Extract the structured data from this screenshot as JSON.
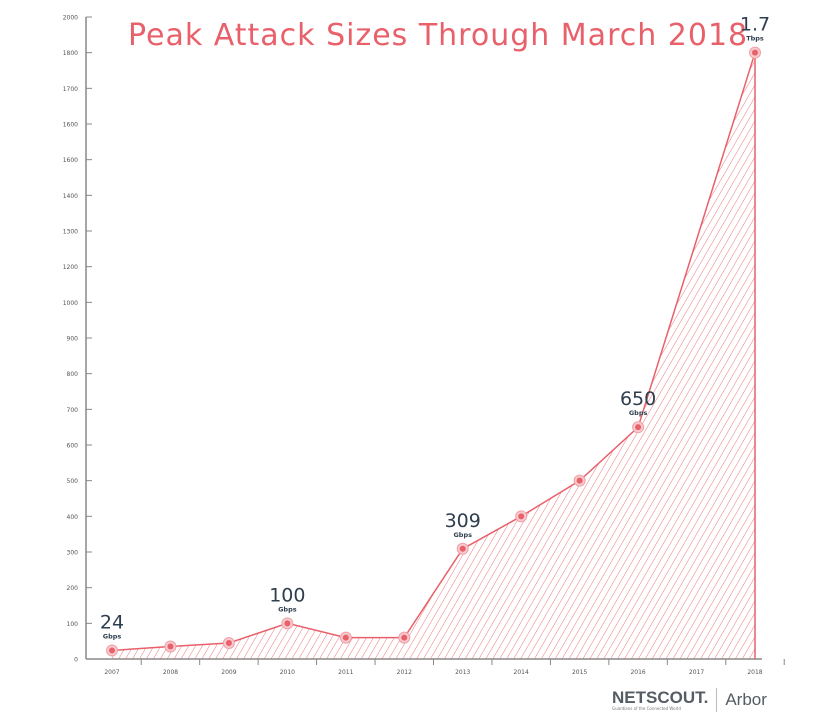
{
  "chart_data": {
    "type": "area",
    "title": "Peak Attack Sizes Through March 2018",
    "xlabel": "",
    "ylabel": "",
    "x_tick_labels": [
      "2007",
      "2008",
      "2009",
      "2010",
      "2011",
      "2012",
      "2013",
      "2014",
      "2015",
      "2016",
      "2017",
      "2018"
    ],
    "y_tick_labels": [
      "0",
      "100",
      "200",
      "300",
      "400",
      "500",
      "600",
      "700",
      "800",
      "900",
      "1000",
      "1200",
      "1300",
      "1400",
      "1600",
      "1600",
      "1700",
      "1800",
      "2000"
    ],
    "points": [
      {
        "x": "2007",
        "y": 24
      },
      {
        "x": "2008",
        "y": 35
      },
      {
        "x": "2009",
        "y": 45
      },
      {
        "x": "2010",
        "y": 100
      },
      {
        "x": "2011",
        "y": 60
      },
      {
        "x": "2012",
        "y": 60
      },
      {
        "x": "2013",
        "y": 309
      },
      {
        "x": "2014",
        "y": 400
      },
      {
        "x": "2015",
        "y": 500
      },
      {
        "x": "2016",
        "y": 650
      },
      {
        "x": "2018",
        "y": 1700
      }
    ],
    "annotations": [
      {
        "x": "2007",
        "y": 24,
        "value": "24",
        "unit": "Gbps"
      },
      {
        "x": "2010",
        "y": 100,
        "value": "100",
        "unit": "Gbps"
      },
      {
        "x": "2013",
        "y": 309,
        "value": "309",
        "unit": "Gbps"
      },
      {
        "x": "2016",
        "y": 650,
        "value": "650",
        "unit": "Gbps"
      },
      {
        "x": "2018",
        "y": 1700,
        "value": "1.7",
        "unit": "Tbps"
      }
    ],
    "fill": "diagonal-hatch",
    "grid": false,
    "colors": {
      "series": "#e8606a",
      "axis": "#888888",
      "labels": "#2f3e4e"
    }
  },
  "logo": {
    "brand": "NETSCOUT.",
    "tagline": "Guardians of the Connected World",
    "product": "Arbor"
  }
}
